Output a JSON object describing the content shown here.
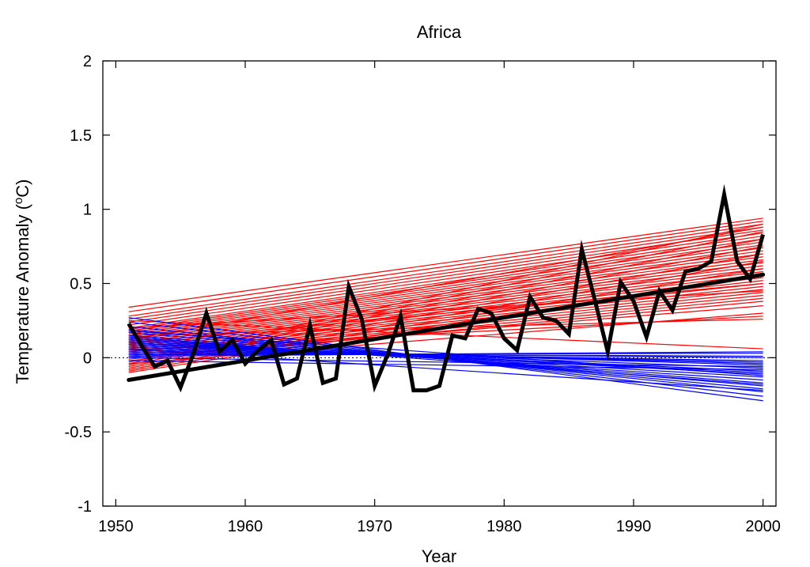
{
  "chart_data": {
    "type": "line",
    "title": "Africa",
    "xlabel": "Year",
    "ylabel_main": "Temperature Anomaly (",
    "ylabel_sup": "o",
    "ylabel_end": "C)",
    "xlim": [
      1949,
      2001
    ],
    "ylim": [
      -1,
      2
    ],
    "xticks": [
      1950,
      1960,
      1970,
      1980,
      1990,
      2000
    ],
    "yticks": [
      -1,
      -0.5,
      0,
      0.5,
      1,
      1.5,
      2
    ],
    "ytick_labels": [
      "-1",
      "-0.5",
      "0",
      "0.5",
      "1",
      "1.5",
      "2"
    ],
    "zero_line": "dotted",
    "grid": false,
    "legend": "none",
    "colors": {
      "observed": "#000000",
      "warming_trends": "#ff0000",
      "cooling_trends": "#0000ff"
    },
    "observed_series": {
      "x": [
        1951,
        1952,
        1953,
        1954,
        1955,
        1956,
        1957,
        1958,
        1959,
        1960,
        1961,
        1962,
        1963,
        1964,
        1965,
        1966,
        1967,
        1968,
        1969,
        1970,
        1971,
        1972,
        1973,
        1974,
        1975,
        1976,
        1977,
        1978,
        1979,
        1980,
        1981,
        1982,
        1983,
        1984,
        1985,
        1986,
        1987,
        1988,
        1989,
        1990,
        1991,
        1992,
        1993,
        1994,
        1995,
        1996,
        1997,
        1998,
        1999,
        2000
      ],
      "y": [
        0.23,
        0.08,
        -0.06,
        -0.02,
        -0.2,
        0.03,
        0.3,
        0.04,
        0.12,
        -0.04,
        0.05,
        0.12,
        -0.18,
        -0.14,
        0.22,
        -0.17,
        -0.14,
        0.48,
        0.26,
        -0.19,
        0.02,
        0.28,
        -0.22,
        -0.22,
        -0.19,
        0.15,
        0.13,
        0.33,
        0.3,
        0.13,
        0.05,
        0.41,
        0.27,
        0.25,
        0.16,
        0.73,
        0.39,
        0.04,
        0.51,
        0.38,
        0.14,
        0.45,
        0.32,
        0.58,
        0.6,
        0.65,
        1.1,
        0.65,
        0.53,
        0.83
      ]
    },
    "observed_trend": {
      "x": [
        1951,
        2000
      ],
      "y": [
        -0.15,
        0.56
      ]
    },
    "warming_trends": {
      "x": [
        1951,
        2000
      ],
      "start": [
        0.34,
        0.31,
        0.28,
        0.26,
        0.24,
        0.22,
        0.2,
        0.19,
        0.18,
        0.17,
        0.16,
        0.15,
        0.14,
        0.13,
        0.12,
        0.11,
        0.1,
        0.09,
        0.08,
        0.07,
        0.06,
        0.05,
        0.04,
        0.03,
        0.02,
        0.01,
        0.0,
        -0.01,
        -0.02,
        -0.03,
        -0.04,
        -0.05,
        -0.06,
        -0.07,
        -0.08,
        -0.09,
        -0.1,
        0.05,
        0.15,
        0.25,
        0.1,
        0.2,
        0.0,
        -0.04,
        0.12
      ],
      "end": [
        0.94,
        0.92,
        0.9,
        0.88,
        0.86,
        0.84,
        0.82,
        0.8,
        0.78,
        0.76,
        0.74,
        0.72,
        0.7,
        0.68,
        0.66,
        0.64,
        0.62,
        0.6,
        0.58,
        0.56,
        0.54,
        0.52,
        0.5,
        0.48,
        0.46,
        0.44,
        0.42,
        0.4,
        0.38,
        0.9,
        0.85,
        0.8,
        0.75,
        0.7,
        0.65,
        0.6,
        0.55,
        0.28,
        0.26,
        0.06,
        0.5,
        0.45,
        0.35,
        0.3,
        0.88
      ]
    },
    "cooling_trends": {
      "x": [
        1951,
        2000
      ],
      "start": [
        0.27,
        0.24,
        0.21,
        0.19,
        0.17,
        0.15,
        0.13,
        0.12,
        0.11,
        0.1,
        0.09,
        0.08,
        0.07,
        0.06,
        0.05,
        0.04,
        0.03,
        0.02,
        0.0,
        -0.02,
        0.14,
        0.18,
        0.1,
        0.06,
        0.01
      ],
      "end": [
        -0.29,
        -0.26,
        -0.23,
        -0.21,
        -0.19,
        -0.17,
        -0.15,
        -0.13,
        -0.11,
        -0.09,
        -0.07,
        -0.05,
        -0.04,
        -0.03,
        -0.02,
        0.0,
        0.01,
        0.03,
        -0.06,
        -0.08,
        -0.18,
        -0.12,
        -0.1,
        -0.22,
        0.04
      ]
    }
  }
}
